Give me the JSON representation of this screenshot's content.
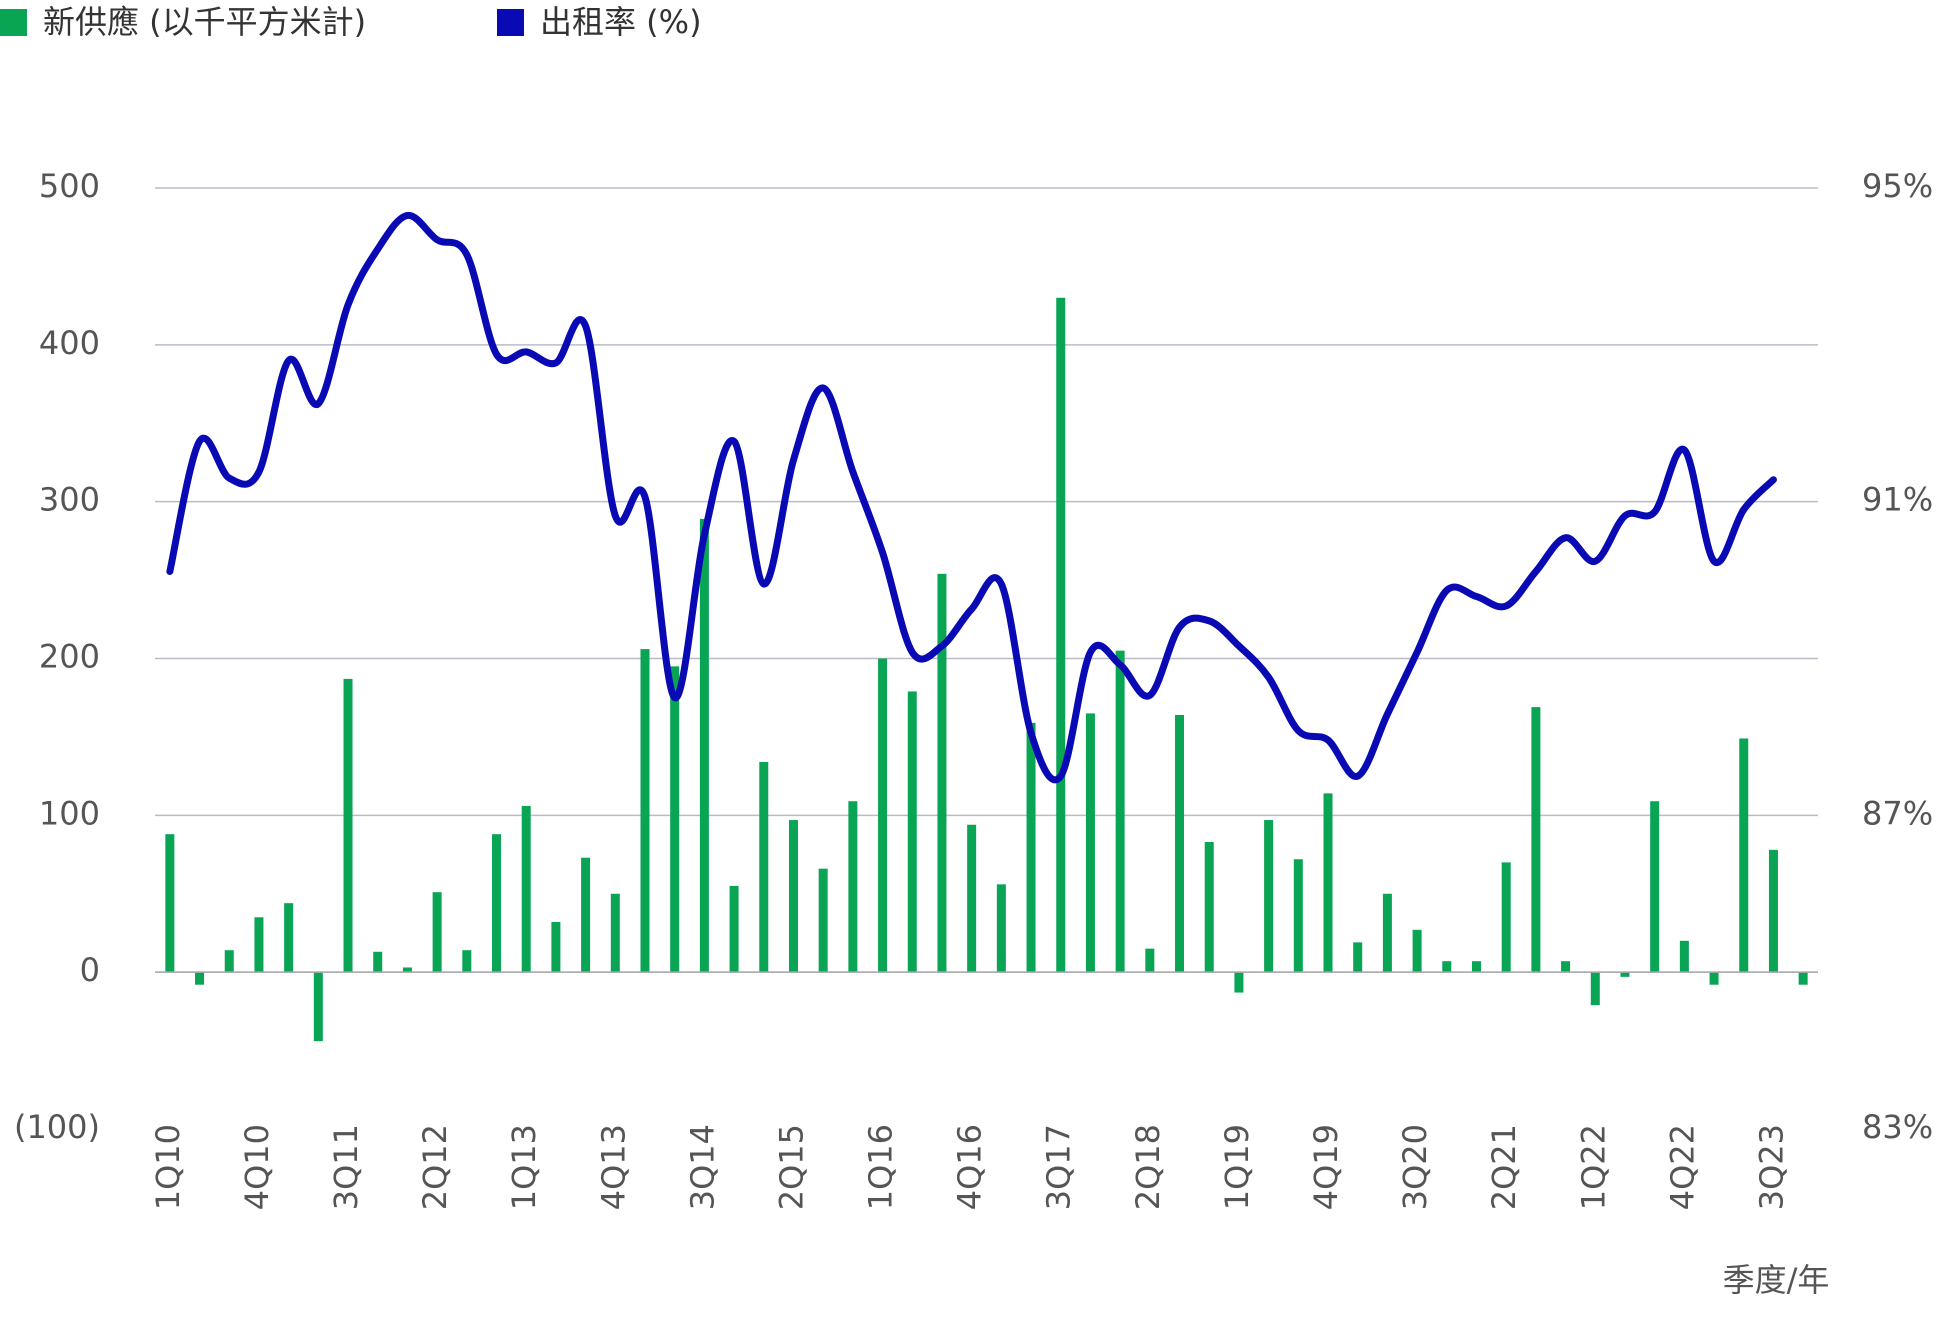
{
  "chart_data": {
    "type": "bar",
    "x_label": "季度/年",
    "categories": [
      "1Q10",
      null,
      null,
      "4Q10",
      null,
      null,
      "3Q11",
      null,
      null,
      "2Q12",
      null,
      null,
      "1Q13",
      null,
      null,
      "4Q13",
      null,
      null,
      "3Q14",
      null,
      null,
      "2Q15",
      null,
      null,
      "1Q16",
      null,
      null,
      "4Q16",
      null,
      null,
      "3Q17",
      null,
      null,
      "2Q18",
      null,
      null,
      "1Q19",
      null,
      null,
      "4Q19",
      null,
      null,
      "3Q20",
      null,
      null,
      "2Q21",
      null,
      null,
      "1Q22",
      null,
      null,
      "4Q22",
      null,
      null,
      "3Q23",
      null
    ],
    "series": [
      {
        "name": "新供應 (以千平方米計)",
        "type": "bar",
        "color": "#0aa455",
        "values": [
          88,
          -8,
          14,
          35,
          44,
          -44,
          187,
          13,
          3,
          51,
          14,
          88,
          106,
          32,
          73,
          50,
          206,
          195,
          289,
          55,
          134,
          97,
          66,
          109,
          200,
          179,
          254,
          94,
          56,
          159,
          430,
          165,
          205,
          15,
          164,
          83,
          -13,
          97,
          72,
          114,
          19,
          50,
          27,
          7,
          7,
          70,
          169,
          7,
          -21,
          -3,
          109,
          20,
          -8,
          149,
          78,
          -8
        ]
      },
      {
        "name": "出租率 (%)",
        "type": "line",
        "axis": "y2",
        "color": "#0a0ab4",
        "values": [
          90.11,
          91.77,
          91.3,
          91.38,
          92.8,
          92.25,
          93.51,
          94.22,
          94.65,
          94.34,
          94.15,
          92.88,
          92.91,
          92.77,
          93.24,
          90.82,
          91.06,
          88.5,
          90.58,
          91.77,
          89.95,
          91.53,
          92.45,
          91.38,
          90.35,
          89.08,
          89.16,
          89.63,
          89.95,
          88.05,
          87.5,
          89.08,
          88.92,
          88.53,
          89.4,
          89.48,
          89.16,
          88.76,
          88.08,
          87.96,
          87.5,
          88.29,
          89.08,
          89.87,
          89.79,
          89.67,
          90.11,
          90.54,
          90.24,
          90.82,
          90.87,
          91.66,
          90.24,
          90.9,
          91.28,
          null
        ]
      }
    ],
    "ylim": [
      -100,
      500
    ],
    "yticks": [
      {
        "value": -100,
        "label": "(100)"
      },
      0,
      100,
      200,
      300,
      400,
      500
    ],
    "y2lim": [
      83,
      95
    ],
    "y2ticks": [
      {
        "value": 83,
        "label": "83%"
      },
      {
        "value": 87,
        "label": "87%"
      },
      {
        "value": 91,
        "label": "91%"
      },
      {
        "value": 95,
        "label": "95%"
      }
    ],
    "grid": true,
    "legend": "top-left"
  }
}
